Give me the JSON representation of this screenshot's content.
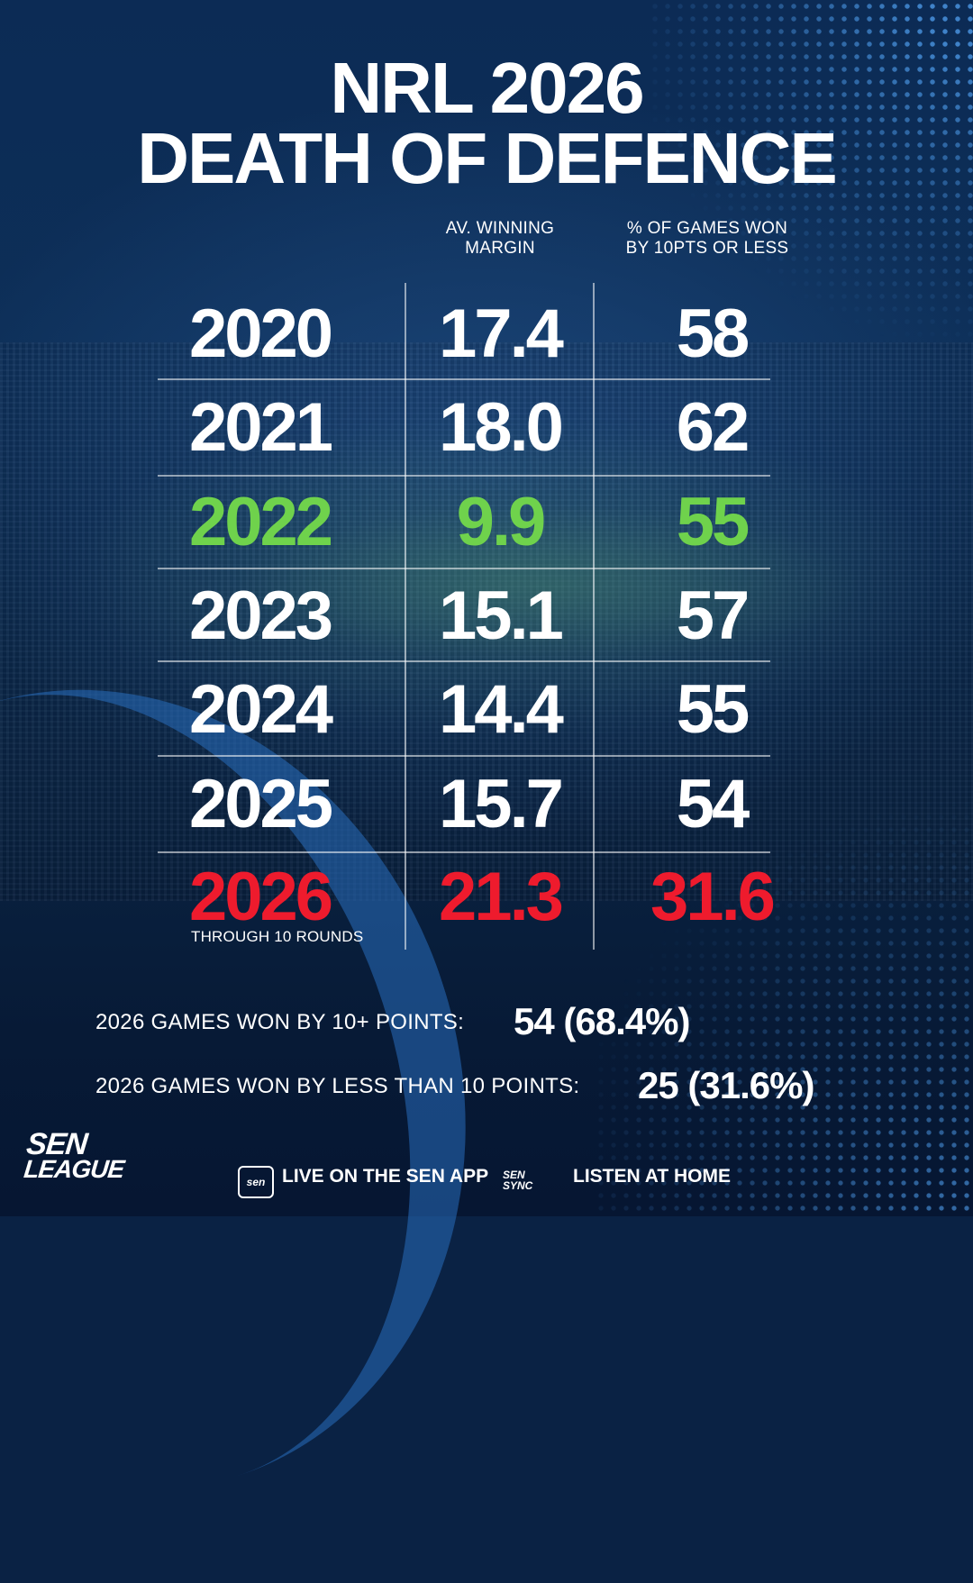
{
  "title": {
    "line1": "NRL 2026",
    "line2": "DEATH OF DEFENCE"
  },
  "columns": {
    "margin": [
      "AV. WINNING",
      "MARGIN"
    ],
    "percent": [
      "% OF GAMES WON",
      "BY 10PTS OR LESS"
    ]
  },
  "rows": [
    {
      "year": "2020",
      "margin": "17.4",
      "percent": "58"
    },
    {
      "year": "2021",
      "margin": "18.0",
      "percent": "62"
    },
    {
      "year": "2022",
      "margin": "9.9",
      "percent": "55"
    },
    {
      "year": "2023",
      "margin": "15.1",
      "percent": "57"
    },
    {
      "year": "2024",
      "margin": "14.4",
      "percent": "55"
    },
    {
      "year": "2025",
      "margin": "15.7",
      "percent": "54"
    },
    {
      "year": "2026",
      "margin": "21.3",
      "percent": "31.6"
    }
  ],
  "row_2026_note": "THROUGH 10 ROUNDS",
  "highlight_colors": {
    "green": "#6fd24c",
    "red": "#ee1b2d"
  },
  "stats": [
    {
      "label": "2026 GAMES WON BY 10+ POINTS:",
      "value": "54 (68.4%)"
    },
    {
      "label": "2026 GAMES WON BY LESS THAN 10 POINTS:",
      "value": "25 (31.6%)"
    }
  ],
  "brand": {
    "logo_line1": "SEN",
    "logo_line2": "LEAGUE",
    "badge": "sen",
    "sync": [
      "SEN",
      "SYNC"
    ]
  },
  "footer": {
    "live": "LIVE ON THE SEN APP",
    "listen": "LISTEN AT HOME"
  }
}
